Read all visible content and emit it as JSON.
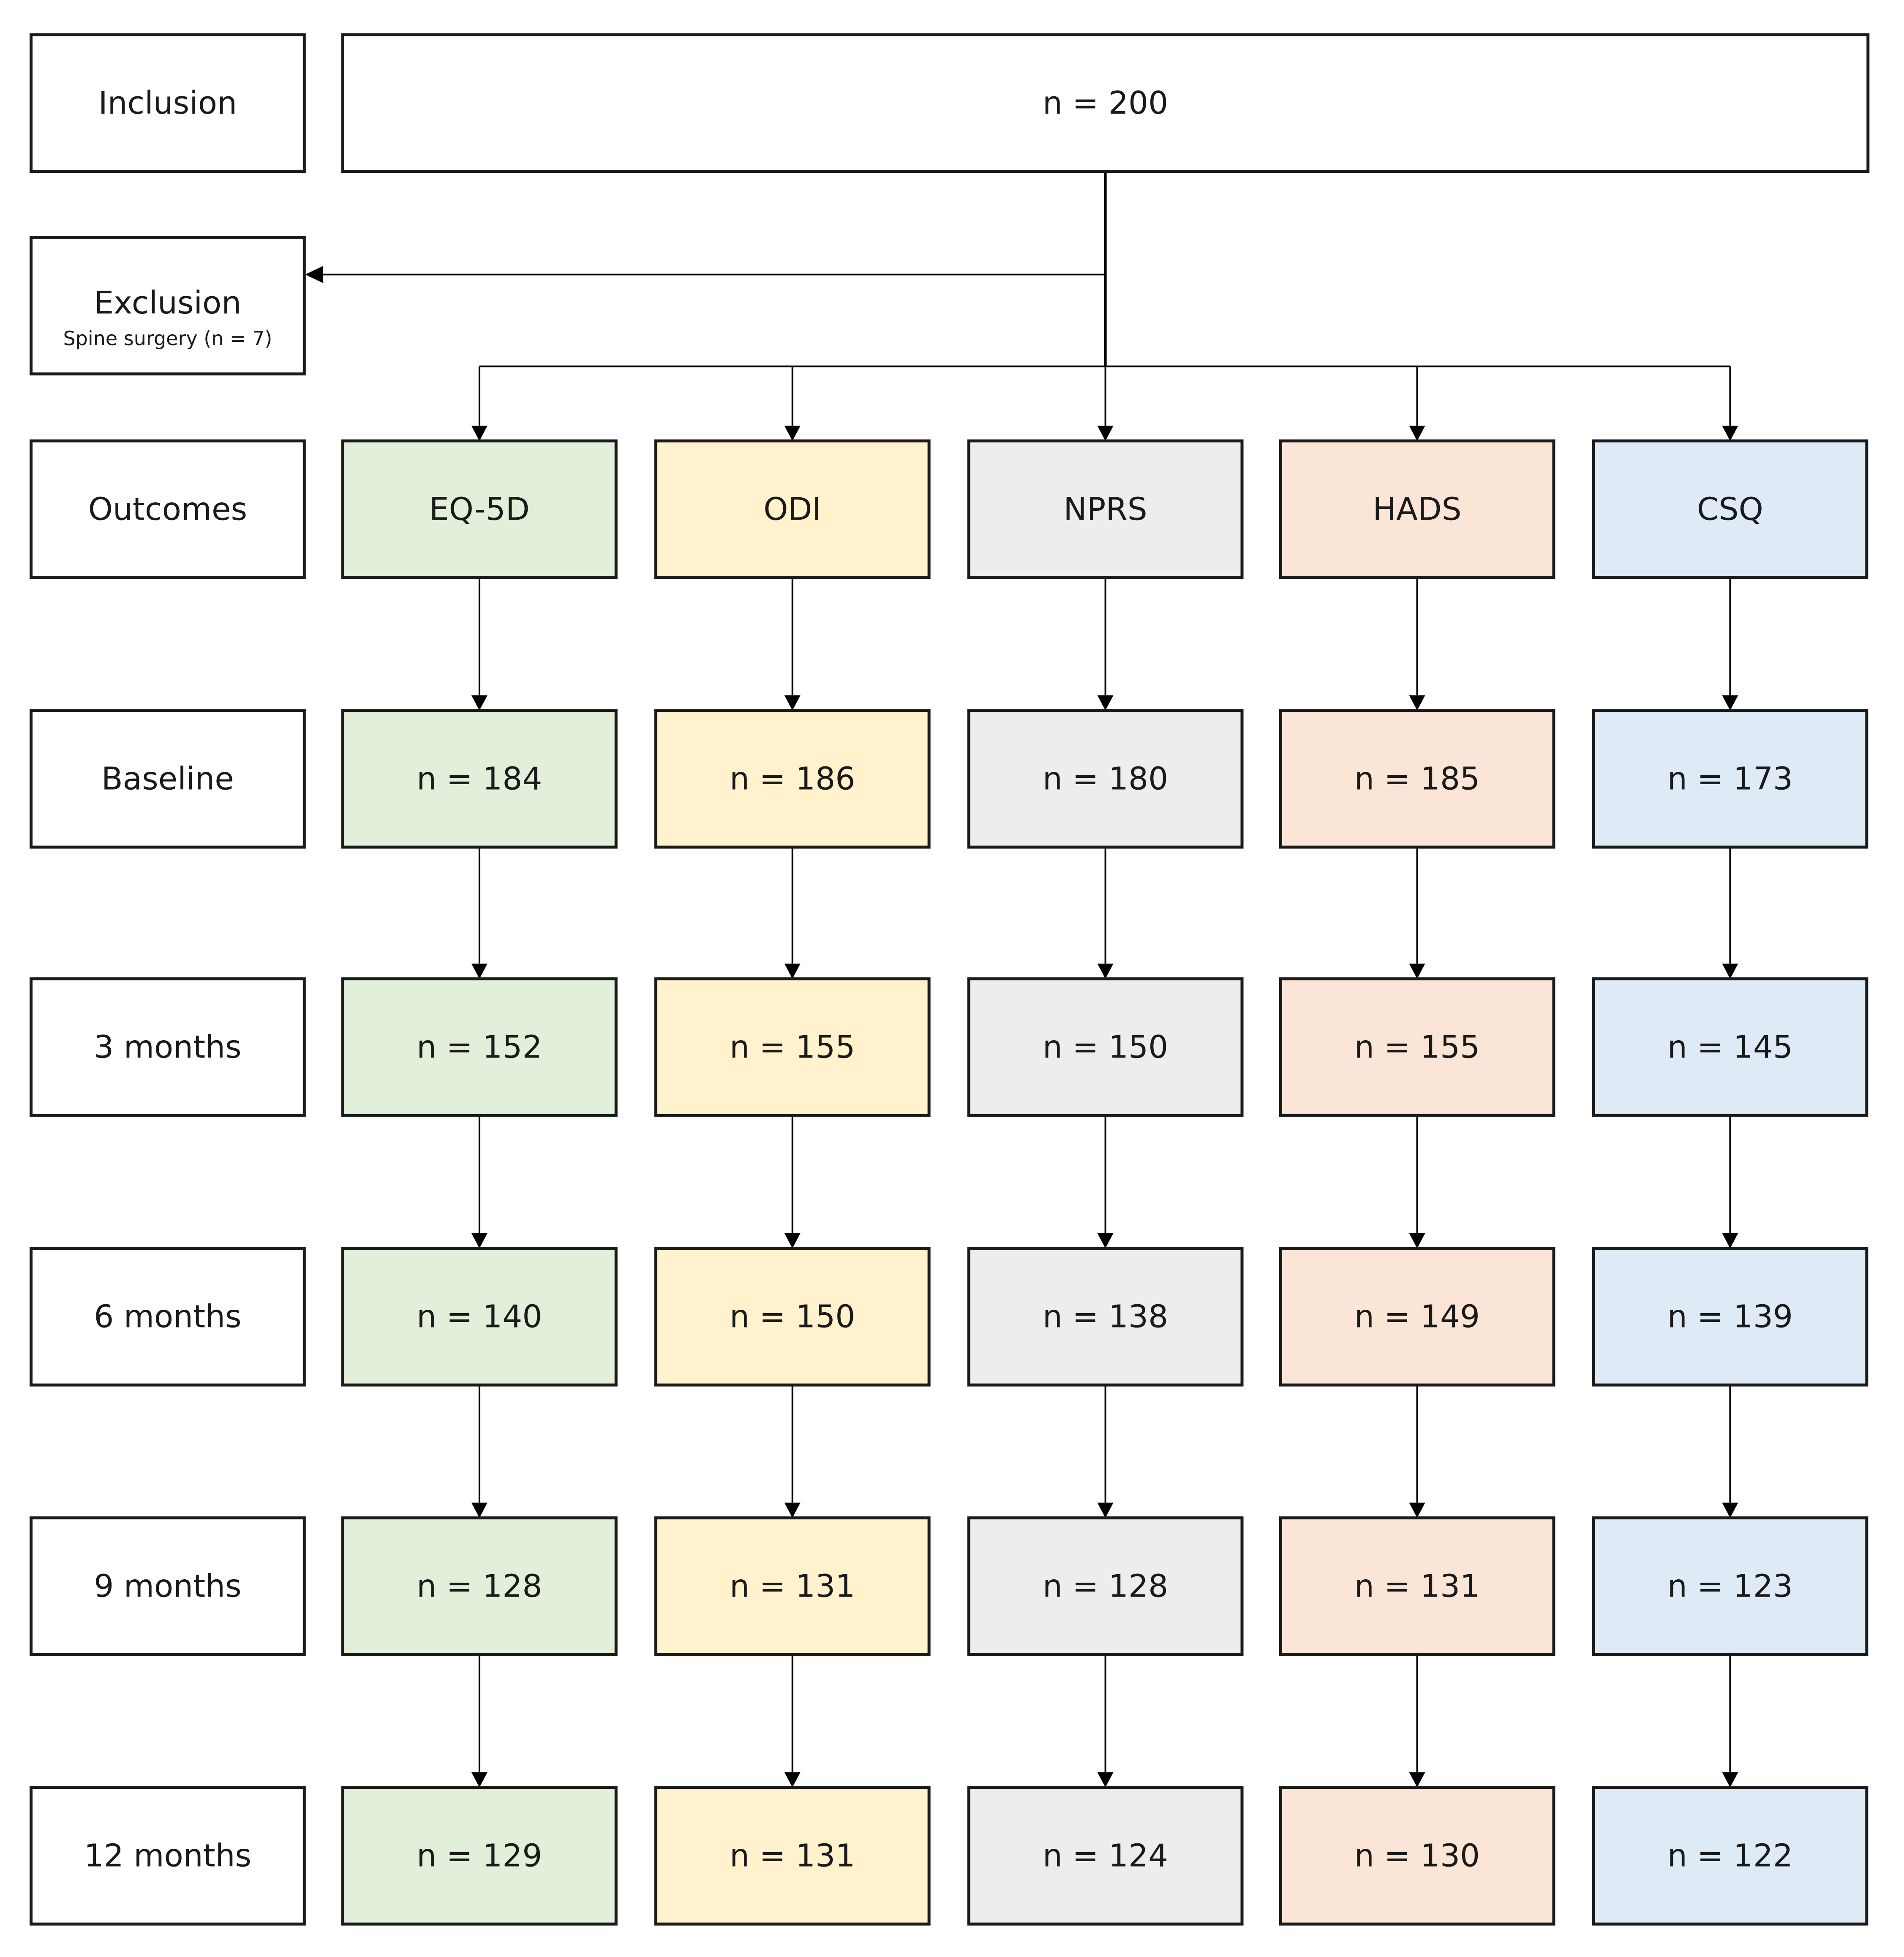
{
  "colors": {
    "stroke": "#1a1a1a",
    "row_label_fill": "#ffffff",
    "EQ-5D": "#e2efda",
    "ODI": "#fff2cc",
    "NPRS": "#ededed",
    "HADS": "#fbe5d6",
    "CSQ": "#deebf7"
  },
  "inclusion": {
    "label": "Inclusion",
    "value": "n = 200"
  },
  "exclusion": {
    "label": "Exclusion",
    "detail": "Spine surgery (n = 7)"
  },
  "outcomes_label": "Outcomes",
  "outcomes": [
    "EQ-5D",
    "ODI",
    "NPRS",
    "HADS",
    "CSQ"
  ],
  "timepoints": [
    {
      "label": "Baseline",
      "values": [
        "n = 184",
        "n = 186",
        "n = 180",
        "n = 185",
        "n = 173"
      ]
    },
    {
      "label": "3 months",
      "values": [
        "n = 152",
        "n = 155",
        "n = 150",
        "n = 155",
        "n = 145"
      ]
    },
    {
      "label": "6 months",
      "values": [
        "n = 140",
        "n = 150",
        "n = 138",
        "n = 149",
        "n = 139"
      ]
    },
    {
      "label": "9 months",
      "values": [
        "n = 128",
        "n = 131",
        "n = 128",
        "n = 131",
        "n = 123"
      ]
    },
    {
      "label": "12 months",
      "values": [
        "n = 129",
        "n = 131",
        "n = 124",
        "n = 130",
        "n = 122"
      ]
    }
  ]
}
